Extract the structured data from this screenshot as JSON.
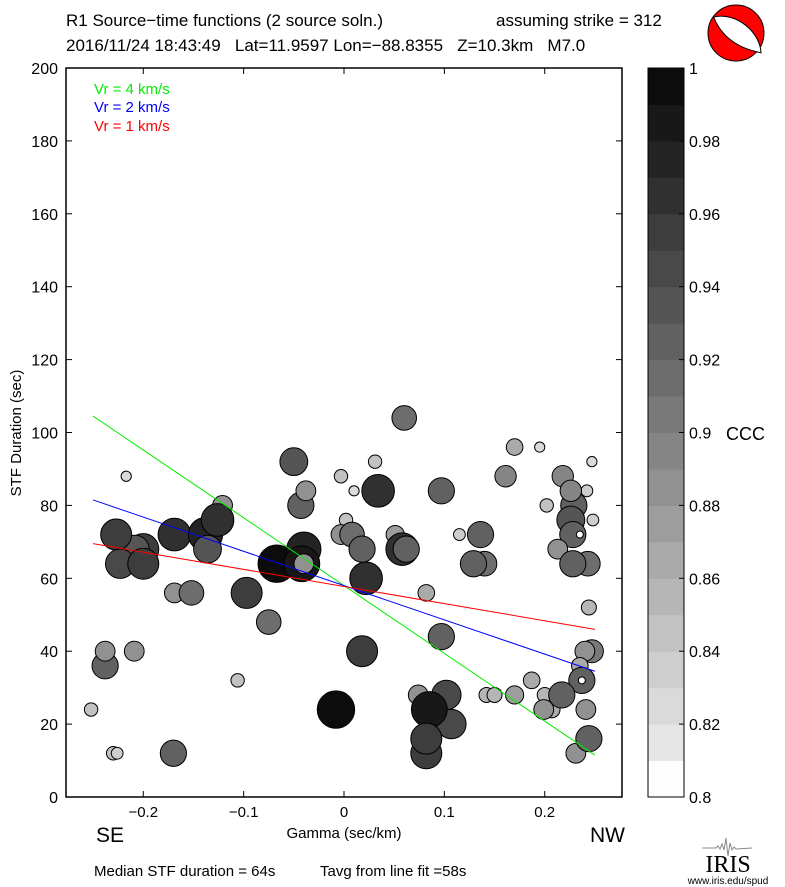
{
  "header": {
    "title": "R1 Source−time functions (2 source soln.)",
    "strike": "assuming strike = 312",
    "event": "2016/11/24 18:43:49   Lat=11.9597 Lon=−88.8355   Z=10.3km   M7.0"
  },
  "footer": {
    "median": "Median STF duration = 64s",
    "tavg": "Tavg from line fit =58s",
    "logo_text": "IRIS",
    "logo_url": "www.iris.edu/spud"
  },
  "colors": {
    "green": "#00ee00",
    "blue": "#0000ff",
    "red": "#ff0000",
    "beachball": "#ff0000"
  },
  "chart_data": {
    "type": "scatter",
    "xlabel": "Gamma (sec/km)",
    "ylabel": "STF Duration (sec)",
    "xlim": [
      -0.277,
      0.277
    ],
    "ylim": [
      0,
      200
    ],
    "xticks": [
      -0.2,
      -0.1,
      0,
      0.1,
      0.2
    ],
    "xtick_labels": [
      "−0.2",
      "−0.1",
      "0",
      "0.1",
      "0.2"
    ],
    "yticks": [
      0,
      20,
      40,
      60,
      80,
      100,
      120,
      140,
      160,
      180,
      200
    ],
    "ytick_labels": [
      "0",
      "20",
      "40",
      "60",
      "80",
      "100",
      "120",
      "140",
      "160",
      "180",
      "200"
    ],
    "direction_labels": {
      "left": "SE",
      "right": "NW"
    },
    "legend": [
      {
        "label": "Vr = 4 km/s",
        "color": "#00ee00"
      },
      {
        "label": "Vr = 2 km/s",
        "color": "#0000ff"
      },
      {
        "label": "Vr = 1 km/s",
        "color": "#ff0000"
      }
    ],
    "fit_lines": [
      {
        "name": "Vr = 4 km/s",
        "x": [
          -0.25,
          0.25
        ],
        "y": [
          104.5,
          11.5
        ]
      },
      {
        "name": "Vr = 2 km/s",
        "x": [
          -0.25,
          0.25
        ],
        "y": [
          81.5,
          34.5
        ]
      },
      {
        "name": "Vr = 1 km/s",
        "x": [
          -0.25,
          0.25
        ],
        "y": [
          69.5,
          46
        ]
      }
    ],
    "colorbar": {
      "label": "CCC",
      "range": [
        0.8,
        1.0
      ],
      "step": 0.01,
      "tick_labels": [
        "1",
        "0.98",
        "0.96",
        "0.94",
        "0.92",
        "0.9",
        "0.88",
        "0.86",
        "0.84",
        "0.82",
        "0.8"
      ],
      "tick_values": [
        1,
        0.98,
        0.96,
        0.94,
        0.92,
        0.9,
        0.88,
        0.86,
        0.84,
        0.82,
        0.8
      ]
    },
    "points_fields": [
      "gamma",
      "duration",
      "ccc"
    ],
    "points": [
      [
        -0.217,
        88,
        0.82
      ],
      [
        -0.121,
        80,
        0.88
      ],
      [
        -0.2,
        68,
        0.95
      ],
      [
        -0.208,
        68,
        0.93
      ],
      [
        -0.227,
        72,
        0.95
      ],
      [
        -0.223,
        64,
        0.94
      ],
      [
        -0.2,
        64,
        0.95
      ],
      [
        -0.169,
        72,
        0.96
      ],
      [
        -0.138,
        72,
        0.97
      ],
      [
        -0.126,
        76,
        0.96
      ],
      [
        -0.136,
        68,
        0.93
      ],
      [
        -0.169,
        56,
        0.88
      ],
      [
        -0.152,
        56,
        0.91
      ],
      [
        -0.097,
        56,
        0.95
      ],
      [
        -0.075,
        48,
        0.91
      ],
      [
        -0.067,
        64,
        0.99
      ],
      [
        -0.04,
        68,
        0.97
      ],
      [
        -0.042,
        64,
        0.98
      ],
      [
        -0.04,
        64,
        0.88
      ],
      [
        -0.05,
        92,
        0.93
      ],
      [
        -0.043,
        80,
        0.92
      ],
      [
        -0.038,
        84,
        0.88
      ],
      [
        -0.238,
        36,
        0.92
      ],
      [
        -0.238,
        40,
        0.88
      ],
      [
        -0.209,
        40,
        0.88
      ],
      [
        -0.106,
        32,
        0.84
      ],
      [
        -0.252,
        24,
        0.84
      ],
      [
        -0.23,
        12,
        0.84
      ],
      [
        -0.226,
        12,
        0.83
      ],
      [
        -0.17,
        12,
        0.92
      ],
      [
        -0.008,
        24,
        0.99
      ],
      [
        0.06,
        104,
        0.91
      ],
      [
        0.17,
        96,
        0.86
      ],
      [
        0.195,
        96,
        0.82
      ],
      [
        0.031,
        92,
        0.84
      ],
      [
        0.247,
        92,
        0.82
      ],
      [
        -0.003,
        88,
        0.84
      ],
      [
        0.161,
        88,
        0.89
      ],
      [
        0.218,
        88,
        0.89
      ],
      [
        0.01,
        84,
        0.82
      ],
      [
        0.034,
        84,
        0.96
      ],
      [
        0.097,
        84,
        0.92
      ],
      [
        0.242,
        84,
        0.83
      ],
      [
        0.202,
        80,
        0.84
      ],
      [
        0.229,
        80,
        0.92
      ],
      [
        0.226,
        84,
        0.89
      ],
      [
        0.226,
        76,
        0.93
      ],
      [
        0.248,
        76,
        0.83
      ],
      [
        0.002,
        76,
        0.84
      ],
      [
        -0.003,
        72,
        0.88
      ],
      [
        0.008,
        72,
        0.91
      ],
      [
        0.051,
        72,
        0.87
      ],
      [
        0.115,
        72,
        0.83
      ],
      [
        0.136,
        72,
        0.92
      ],
      [
        0.228,
        72,
        0.92
      ],
      [
        0.235,
        72,
        0.8
      ],
      [
        0.018,
        68,
        0.92
      ],
      [
        0.058,
        68,
        0.96
      ],
      [
        0.062,
        68,
        0.92
      ],
      [
        0.213,
        68,
        0.88
      ],
      [
        0.14,
        64,
        0.91
      ],
      [
        0.129,
        64,
        0.92
      ],
      [
        0.243,
        64,
        0.91
      ],
      [
        0.228,
        64,
        0.92
      ],
      [
        0.022,
        60,
        0.96
      ],
      [
        0.082,
        56,
        0.86
      ],
      [
        0.244,
        52,
        0.85
      ],
      [
        0.097,
        44,
        0.92
      ],
      [
        0.018,
        40,
        0.95
      ],
      [
        0.247,
        40,
        0.9
      ],
      [
        0.24,
        40,
        0.88
      ],
      [
        0.235,
        36,
        0.86
      ],
      [
        0.187,
        32,
        0.86
      ],
      [
        0.237,
        32,
        0.92
      ],
      [
        0.237,
        32,
        0.8
      ],
      [
        0.074,
        28,
        0.88
      ],
      [
        0.142,
        28,
        0.85
      ],
      [
        0.15,
        28,
        0.85
      ],
      [
        0.17,
        28,
        0.87
      ],
      [
        0.2,
        28,
        0.85
      ],
      [
        0.207,
        24,
        0.86
      ],
      [
        0.199,
        24,
        0.88
      ],
      [
        0.217,
        28,
        0.92
      ],
      [
        0.107,
        20,
        0.94
      ],
      [
        0.102,
        28,
        0.94
      ],
      [
        0.085,
        24,
        0.98
      ],
      [
        0.241,
        24,
        0.88
      ],
      [
        0.082,
        12,
        0.95
      ],
      [
        0.082,
        16,
        0.95
      ],
      [
        0.231,
        12,
        0.88
      ],
      [
        0.244,
        16,
        0.92
      ]
    ]
  }
}
